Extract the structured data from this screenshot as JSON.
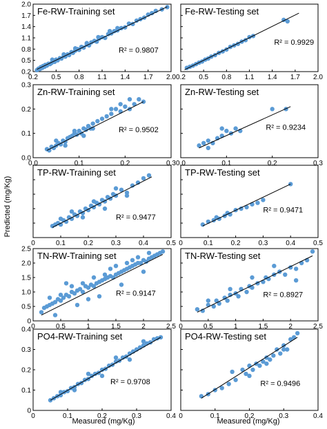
{
  "figure": {
    "ylabel": "Predicted (mg/Kg)",
    "xlabel": "Measured (mg/Kg)"
  },
  "chart_data": [
    {
      "type": "scatter",
      "title": "Fe-RW-Training set",
      "r2_label": "R² = 0.9807",
      "xlim": [
        0.2,
        2.0
      ],
      "ylim": [
        0.2,
        2.0
      ],
      "xticks": [
        "0.2",
        "0.5",
        "0.8",
        "1.1",
        "1.4",
        "1.7",
        "2.0"
      ],
      "yticks": [
        "0.2",
        "0.5",
        "0.8",
        "1.1",
        "1.4",
        "1.7",
        "2.0"
      ],
      "yticklabels": [
        "0.2",
        "0.5",
        "0.8",
        "1.1",
        "1.4",
        "1.7",
        "2.0"
      ],
      "show_xticklabels": true,
      "fit": [
        [
          0.25,
          0.26
        ],
        [
          1.95,
          1.93
        ]
      ],
      "x": [
        0.25,
        0.27,
        0.29,
        0.3,
        0.32,
        0.33,
        0.35,
        0.36,
        0.38,
        0.4,
        0.42,
        0.44,
        0.46,
        0.48,
        0.5,
        0.52,
        0.55,
        0.57,
        0.6,
        0.62,
        0.65,
        0.67,
        0.7,
        0.72,
        0.75,
        0.78,
        0.8,
        0.83,
        0.86,
        0.9,
        0.93,
        0.96,
        1.0,
        1.03,
        1.06,
        1.1,
        1.14,
        1.18,
        1.22,
        1.26,
        1.3,
        1.35,
        1.4,
        1.45,
        1.5,
        1.55,
        1.6,
        1.65,
        1.7,
        1.75,
        1.8,
        1.88,
        1.95,
        0.45,
        0.6,
        0.75,
        0.9,
        1.05,
        1.2,
        1.3
      ],
      "y": [
        0.24,
        0.28,
        0.27,
        0.32,
        0.3,
        0.35,
        0.33,
        0.38,
        0.36,
        0.41,
        0.4,
        0.43,
        0.47,
        0.46,
        0.52,
        0.5,
        0.56,
        0.55,
        0.62,
        0.6,
        0.66,
        0.64,
        0.72,
        0.7,
        0.76,
        0.8,
        0.78,
        0.86,
        0.84,
        0.92,
        0.9,
        0.98,
        1.02,
        1.0,
        1.08,
        1.12,
        1.1,
        1.2,
        1.22,
        1.28,
        1.3,
        1.36,
        1.38,
        1.48,
        1.47,
        1.56,
        1.6,
        1.64,
        1.72,
        1.76,
        1.82,
        1.86,
        1.92,
        0.52,
        0.66,
        0.82,
        0.96,
        1.12,
        1.28,
        1.36
      ]
    },
    {
      "type": "scatter",
      "title": "Fe-RW-Testing set",
      "r2_label": "R² = 0.9929",
      "xlim": [
        0.2,
        2.0
      ],
      "ylim": [
        0.2,
        2.0
      ],
      "xticks": [
        "0.2",
        "0.5",
        "0.8",
        "1.1",
        "1.4",
        "1.7",
        "2.0"
      ],
      "yticks": [
        "0.2",
        "0.5",
        "0.8",
        "1.1",
        "1.4",
        "1.7",
        "2.0"
      ],
      "yticklabels": [],
      "show_xticklabels": true,
      "fit": [
        [
          0.25,
          0.25
        ],
        [
          1.75,
          1.76
        ]
      ],
      "x": [
        0.28,
        0.32,
        0.36,
        0.4,
        0.44,
        0.48,
        0.52,
        0.56,
        0.6,
        0.65,
        0.7,
        0.75,
        0.8,
        0.85,
        0.9,
        0.95,
        1.0,
        1.05,
        1.1,
        1.15,
        1.55,
        1.6
      ],
      "y": [
        0.3,
        0.33,
        0.36,
        0.4,
        0.44,
        0.47,
        0.52,
        0.55,
        0.6,
        0.64,
        0.7,
        0.74,
        0.79,
        0.86,
        0.9,
        0.94,
        1.0,
        1.04,
        1.12,
        1.15,
        1.58,
        1.54
      ]
    },
    {
      "type": "scatter",
      "title": "Zn-RW-Training set",
      "r2_label": "R² = 0.9502",
      "xlim": [
        0.0,
        0.3
      ],
      "ylim": [
        0.0,
        0.3
      ],
      "xticks": [
        "0.0",
        "0.1",
        "0.2",
        "0.3"
      ],
      "yticks": [
        "0.0",
        "0.1",
        "0.2",
        "0.3"
      ],
      "yticklabels": [
        "0.0",
        "0.1",
        "0.2",
        "0.3"
      ],
      "show_xticklabels": true,
      "fit": [
        [
          0.03,
          0.03
        ],
        [
          0.24,
          0.23
        ]
      ],
      "x": [
        0.03,
        0.035,
        0.04,
        0.045,
        0.05,
        0.055,
        0.06,
        0.065,
        0.07,
        0.075,
        0.08,
        0.085,
        0.09,
        0.095,
        0.1,
        0.105,
        0.11,
        0.115,
        0.12,
        0.125,
        0.13,
        0.14,
        0.15,
        0.16,
        0.17,
        0.18,
        0.19,
        0.2,
        0.21,
        0.22,
        0.23,
        0.24,
        0.05,
        0.07,
        0.09,
        0.11,
        0.13,
        0.17,
        0.19,
        0.21
      ],
      "y": [
        0.035,
        0.03,
        0.045,
        0.04,
        0.05,
        0.06,
        0.055,
        0.07,
        0.065,
        0.08,
        0.085,
        0.09,
        0.1,
        0.095,
        0.11,
        0.1,
        0.12,
        0.115,
        0.13,
        0.12,
        0.14,
        0.15,
        0.16,
        0.17,
        0.18,
        0.2,
        0.19,
        0.21,
        0.2,
        0.22,
        0.24,
        0.23,
        0.07,
        0.05,
        0.11,
        0.09,
        0.12,
        0.2,
        0.22,
        0.24
      ]
    },
    {
      "type": "scatter",
      "title": "Zn-RW-Testing set",
      "r2_label": "R² = 0.9234",
      "xlim": [
        0.0,
        0.3
      ],
      "ylim": [
        0.0,
        0.3
      ],
      "xticks": [
        "0.0",
        "0.1",
        "0.2",
        "0.3"
      ],
      "yticks": [
        "0.0",
        "0.1",
        "0.2",
        "0.3"
      ],
      "yticklabels": [],
      "show_xticklabels": true,
      "fit": [
        [
          0.04,
          0.04
        ],
        [
          0.24,
          0.21
        ]
      ],
      "x": [
        0.04,
        0.05,
        0.06,
        0.07,
        0.08,
        0.09,
        0.1,
        0.11,
        0.12,
        0.13,
        0.2,
        0.23,
        0.06,
        0.09
      ],
      "y": [
        0.05,
        0.06,
        0.07,
        0.06,
        0.08,
        0.09,
        0.11,
        0.1,
        0.12,
        0.11,
        0.2,
        0.2,
        0.04,
        0.12
      ]
    },
    {
      "type": "scatter",
      "title": "TP-RW-Training set",
      "r2_label": "R² = 0.9477",
      "xlim": [
        0.0,
        0.5
      ],
      "ylim": [
        0.0,
        0.5
      ],
      "xticks": [
        "0",
        "0.1",
        "0.2",
        "0.3",
        "0.4",
        "0.5"
      ],
      "yticks": [
        "0",
        "0.1",
        "0.2",
        "0.3",
        "0.4",
        "0.5"
      ],
      "yticklabels": [],
      "show_xticklabels": true,
      "fit": [
        [
          0.07,
          0.07
        ],
        [
          0.43,
          0.42
        ]
      ],
      "x": [
        0.07,
        0.08,
        0.09,
        0.1,
        0.11,
        0.12,
        0.13,
        0.14,
        0.15,
        0.16,
        0.17,
        0.18,
        0.19,
        0.2,
        0.21,
        0.22,
        0.23,
        0.24,
        0.25,
        0.26,
        0.27,
        0.28,
        0.29,
        0.3,
        0.32,
        0.34,
        0.36,
        0.38,
        0.4,
        0.42,
        0.1,
        0.14,
        0.18,
        0.22,
        0.26,
        0.3,
        0.34
      ],
      "y": [
        0.08,
        0.09,
        0.1,
        0.09,
        0.12,
        0.11,
        0.14,
        0.13,
        0.16,
        0.15,
        0.18,
        0.17,
        0.2,
        0.19,
        0.22,
        0.21,
        0.24,
        0.23,
        0.26,
        0.25,
        0.28,
        0.27,
        0.3,
        0.29,
        0.33,
        0.31,
        0.36,
        0.38,
        0.41,
        0.43,
        0.13,
        0.18,
        0.14,
        0.25,
        0.2,
        0.34,
        0.29
      ]
    },
    {
      "type": "scatter",
      "title": "TP-RW-Testing set",
      "r2_label": "R² = 0.9471",
      "xlim": [
        0.0,
        0.5
      ],
      "ylim": [
        0.0,
        0.5
      ],
      "xticks": [
        "0",
        "0.1",
        "0.2",
        "0.3",
        "0.4",
        "0.5"
      ],
      "yticks": [
        "0",
        "0.1",
        "0.2",
        "0.3",
        "0.4",
        "0.5"
      ],
      "yticklabels": [],
      "show_xticklabels": true,
      "fit": [
        [
          0.08,
          0.08
        ],
        [
          0.4,
          0.37
        ]
      ],
      "x": [
        0.08,
        0.1,
        0.12,
        0.13,
        0.14,
        0.16,
        0.17,
        0.18,
        0.2,
        0.22,
        0.24,
        0.26,
        0.28,
        0.3,
        0.4
      ],
      "y": [
        0.09,
        0.11,
        0.12,
        0.14,
        0.13,
        0.15,
        0.17,
        0.16,
        0.19,
        0.2,
        0.21,
        0.23,
        0.24,
        0.26,
        0.37
      ]
    },
    {
      "type": "scatter",
      "title": "TN-RW-Training set",
      "r2_label": "R² = 0.9147",
      "xlim": [
        0.0,
        2.5
      ],
      "ylim": [
        0.0,
        2.5
      ],
      "xticks": [
        "0",
        "0.5",
        "1",
        "1.5",
        "2",
        "2.5"
      ],
      "yticks": [
        "0",
        "0.5",
        "1.0",
        "1.5",
        "2.0",
        "2.5"
      ],
      "yticklabels": [
        "0",
        "0.5",
        "1.0",
        "1.5",
        "2.0",
        "2.5"
      ],
      "show_xticklabels": true,
      "fit": [
        [
          0.15,
          0.2
        ],
        [
          2.35,
          2.3
        ]
      ],
      "x": [
        0.15,
        0.2,
        0.25,
        0.3,
        0.35,
        0.4,
        0.45,
        0.5,
        0.55,
        0.6,
        0.65,
        0.7,
        0.75,
        0.8,
        0.85,
        0.9,
        0.95,
        1.0,
        1.05,
        1.1,
        1.15,
        1.2,
        1.25,
        1.3,
        1.35,
        1.4,
        1.45,
        1.5,
        1.55,
        1.6,
        1.65,
        1.7,
        1.75,
        1.8,
        1.85,
        1.9,
        1.95,
        2.0,
        2.05,
        2.1,
        2.15,
        2.2,
        2.25,
        2.3,
        2.35,
        0.3,
        0.5,
        0.7,
        0.9,
        1.1,
        1.3,
        1.5,
        1.7,
        1.9,
        2.1,
        0.4,
        0.8,
        1.2,
        1.6,
        2.0,
        0.6,
        1.0,
        1.4,
        1.8
      ],
      "y": [
        0.3,
        0.45,
        0.5,
        0.55,
        0.6,
        0.65,
        0.75,
        0.7,
        0.8,
        0.9,
        0.85,
        1.0,
        0.95,
        1.05,
        1.1,
        1.0,
        1.2,
        1.15,
        1.25,
        1.2,
        1.3,
        1.35,
        1.4,
        1.45,
        1.5,
        1.55,
        1.5,
        1.6,
        1.65,
        1.7,
        1.75,
        1.8,
        1.85,
        1.9,
        1.95,
        2.0,
        2.0,
        2.1,
        2.05,
        2.15,
        2.2,
        2.25,
        2.3,
        2.35,
        2.4,
        0.8,
        0.9,
        1.2,
        1.3,
        1.5,
        1.6,
        1.9,
        2.0,
        2.2,
        2.35,
        0.2,
        0.55,
        0.85,
        1.25,
        1.7,
        1.3,
        0.75,
        1.8,
        2.1
      ]
    },
    {
      "type": "scatter",
      "title": "TN-RW-Testing set",
      "r2_label": "R² = 0.8927",
      "xlim": [
        0.0,
        2.5
      ],
      "ylim": [
        0.0,
        2.5
      ],
      "xticks": [
        "0",
        "0.5",
        "1",
        "1.5",
        "2",
        "2.5"
      ],
      "yticks": [
        "0",
        "0.5",
        "1.0",
        "1.5",
        "2.0",
        "2.5"
      ],
      "yticklabels": [],
      "show_xticklabels": true,
      "fit": [
        [
          0.3,
          0.3
        ],
        [
          2.4,
          2.25
        ]
      ],
      "x": [
        0.3,
        0.4,
        0.5,
        0.6,
        0.65,
        0.7,
        0.8,
        0.85,
        0.9,
        1.0,
        1.05,
        1.1,
        1.2,
        1.25,
        1.3,
        1.4,
        1.5,
        1.55,
        1.6,
        1.7,
        1.8,
        1.9,
        2.0,
        2.1,
        2.2,
        2.3,
        2.4,
        0.5,
        0.9,
        1.3,
        1.7,
        2.1
      ],
      "y": [
        0.4,
        0.35,
        0.55,
        0.5,
        0.7,
        0.6,
        0.8,
        0.7,
        0.9,
        0.95,
        0.85,
        1.1,
        1.0,
        1.2,
        1.15,
        1.3,
        1.35,
        1.5,
        1.45,
        1.6,
        1.7,
        1.6,
        1.85,
        1.8,
        2.0,
        2.1,
        2.4,
        0.7,
        1.1,
        1.5,
        1.9,
        1.4
      ]
    },
    {
      "type": "scatter",
      "title": "PO4-RW-Training set",
      "r2_label": "R² = 0.9708",
      "xlim": [
        0.0,
        0.4
      ],
      "ylim": [
        0.0,
        0.4
      ],
      "xticks": [
        "0",
        "0.1",
        "0.2",
        "0.3",
        "0.4"
      ],
      "yticks": [
        "0",
        "0.1",
        "0.2",
        "0.3",
        "0.4"
      ],
      "yticklabels": [
        "0",
        "0.1",
        "0.2",
        "0.3",
        "0.4"
      ],
      "show_xticklabels": true,
      "fit": [
        [
          0.05,
          0.05
        ],
        [
          0.37,
          0.36
        ]
      ],
      "x": [
        0.05,
        0.06,
        0.07,
        0.08,
        0.09,
        0.1,
        0.11,
        0.12,
        0.13,
        0.14,
        0.15,
        0.16,
        0.17,
        0.18,
        0.19,
        0.2,
        0.21,
        0.22,
        0.23,
        0.24,
        0.25,
        0.26,
        0.27,
        0.28,
        0.29,
        0.3,
        0.31,
        0.32,
        0.33,
        0.34,
        0.35,
        0.36,
        0.37,
        0.08,
        0.12,
        0.16,
        0.2,
        0.24,
        0.28,
        0.32
      ],
      "y": [
        0.05,
        0.06,
        0.07,
        0.075,
        0.09,
        0.095,
        0.11,
        0.115,
        0.13,
        0.135,
        0.15,
        0.155,
        0.17,
        0.18,
        0.185,
        0.2,
        0.205,
        0.22,
        0.225,
        0.24,
        0.245,
        0.26,
        0.265,
        0.28,
        0.29,
        0.3,
        0.31,
        0.32,
        0.33,
        0.335,
        0.35,
        0.355,
        0.36,
        0.09,
        0.1,
        0.18,
        0.17,
        0.26,
        0.25,
        0.34
      ]
    },
    {
      "type": "scatter",
      "title": "PO4-RW-Testing set",
      "r2_label": "R² = 0.9496",
      "xlim": [
        0.0,
        0.4
      ],
      "ylim": [
        0.0,
        0.4
      ],
      "xticks": [
        "0",
        "0.1",
        "0.2",
        "0.3",
        "0.4"
      ],
      "yticks": [
        "0",
        "0.1",
        "0.2",
        "0.3",
        "0.4"
      ],
      "yticklabels": [],
      "show_xticklabels": true,
      "fit": [
        [
          0.06,
          0.06
        ],
        [
          0.34,
          0.36
        ]
      ],
      "x": [
        0.06,
        0.08,
        0.1,
        0.12,
        0.14,
        0.16,
        0.18,
        0.19,
        0.2,
        0.21,
        0.22,
        0.23,
        0.24,
        0.25,
        0.26,
        0.27,
        0.28,
        0.29,
        0.3,
        0.31,
        0.32,
        0.33,
        0.34,
        0.15,
        0.2,
        0.25,
        0.3
      ],
      "y": [
        0.07,
        0.08,
        0.1,
        0.11,
        0.13,
        0.15,
        0.2,
        0.18,
        0.22,
        0.2,
        0.23,
        0.22,
        0.24,
        0.26,
        0.25,
        0.27,
        0.3,
        0.28,
        0.32,
        0.3,
        0.35,
        0.36,
        0.38,
        0.19,
        0.17,
        0.23,
        0.3
      ]
    }
  ]
}
